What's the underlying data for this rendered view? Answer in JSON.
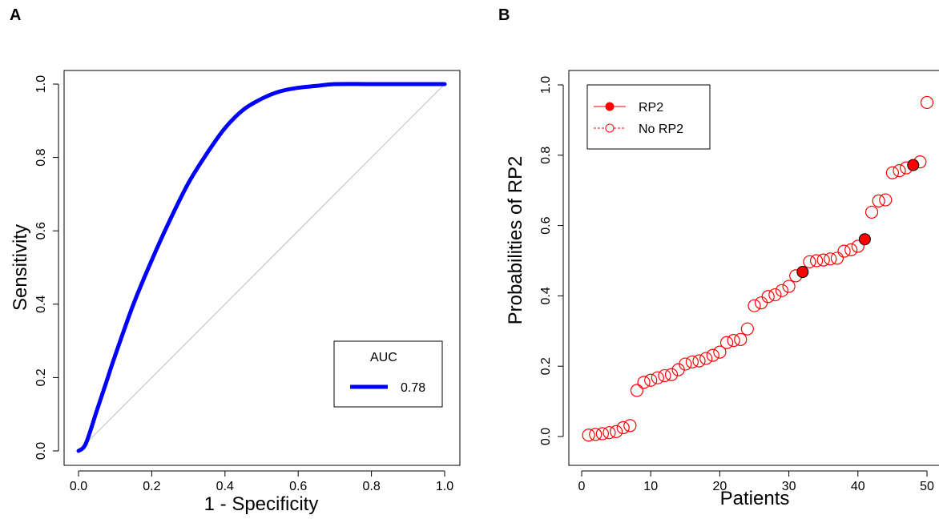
{
  "panels": [
    {
      "letter": "A"
    },
    {
      "letter": "B"
    }
  ],
  "chart_data": [
    {
      "type": "line",
      "panel": "A",
      "xlabel": "1 - Specificity",
      "ylabel": "Sensitivity",
      "xlim": [
        0,
        1
      ],
      "ylim": [
        0,
        1
      ],
      "xticks": [
        "0.0",
        "0.2",
        "0.4",
        "0.6",
        "0.8",
        "1.0"
      ],
      "yticks": [
        "0.0",
        "0.2",
        "0.4",
        "0.6",
        "0.8",
        "1.0"
      ],
      "grid": false,
      "legend": {
        "title": "AUC",
        "position": "bottom-right",
        "entries": [
          {
            "label": "0.78",
            "color": "#0000ff"
          }
        ]
      },
      "series": [
        {
          "color": "#0000ff",
          "x": [
            0.0,
            0.02,
            0.05,
            0.08,
            0.1,
            0.15,
            0.2,
            0.25,
            0.3,
            0.35,
            0.4,
            0.45,
            0.5,
            0.55,
            0.6,
            0.65,
            0.7,
            0.8,
            0.9,
            1.0
          ],
          "y": [
            0.0,
            0.02,
            0.11,
            0.2,
            0.26,
            0.4,
            0.52,
            0.63,
            0.73,
            0.81,
            0.88,
            0.93,
            0.96,
            0.98,
            0.99,
            0.995,
            1.0,
            1.0,
            1.0,
            1.0
          ]
        },
        {
          "color": "#bebebe",
          "x": [
            0,
            1
          ],
          "y": [
            0,
            1
          ]
        }
      ]
    },
    {
      "type": "scatter",
      "panel": "B",
      "xlabel": "Patients",
      "ylabel": "Probabilities of RP2",
      "xlim": [
        0,
        50
      ],
      "ylim": [
        0,
        1
      ],
      "xticks": [
        "0",
        "10",
        "20",
        "30",
        "40",
        "50"
      ],
      "yticks": [
        "0.0",
        "0.2",
        "0.4",
        "0.6",
        "0.8",
        "1.0"
      ],
      "grid": false,
      "legend": {
        "position": "top-left",
        "entries": [
          {
            "label": "RP2",
            "color": "#ff0000",
            "marker": "filled"
          },
          {
            "label": "No RP2",
            "color": "#ff0000",
            "marker": "open"
          }
        ]
      },
      "series": [
        {
          "name": "RP2",
          "color": "#ff0000",
          "marker": "filled",
          "x": [
            32,
            41,
            48
          ],
          "y": [
            0.468,
            0.561,
            0.772
          ]
        },
        {
          "name": "No RP2",
          "color": "#ff0000",
          "marker": "open",
          "x": [
            1,
            2,
            3,
            4,
            5,
            6,
            7,
            8,
            9,
            10,
            11,
            12,
            13,
            14,
            15,
            16,
            17,
            18,
            19,
            20,
            21,
            22,
            23,
            24,
            25,
            26,
            27,
            28,
            29,
            30,
            31,
            33,
            34,
            35,
            36,
            37,
            38,
            39,
            40,
            42,
            43,
            44,
            45,
            46,
            47,
            49,
            50
          ],
          "y": [
            0.004,
            0.006,
            0.008,
            0.011,
            0.014,
            0.025,
            0.031,
            0.131,
            0.154,
            0.16,
            0.167,
            0.173,
            0.176,
            0.19,
            0.206,
            0.212,
            0.215,
            0.222,
            0.231,
            0.24,
            0.267,
            0.273,
            0.276,
            0.306,
            0.372,
            0.38,
            0.398,
            0.403,
            0.415,
            0.427,
            0.457,
            0.497,
            0.5,
            0.502,
            0.505,
            0.507,
            0.527,
            0.531,
            0.541,
            0.638,
            0.67,
            0.673,
            0.75,
            0.756,
            0.764,
            0.781,
            0.95
          ]
        }
      ]
    }
  ]
}
